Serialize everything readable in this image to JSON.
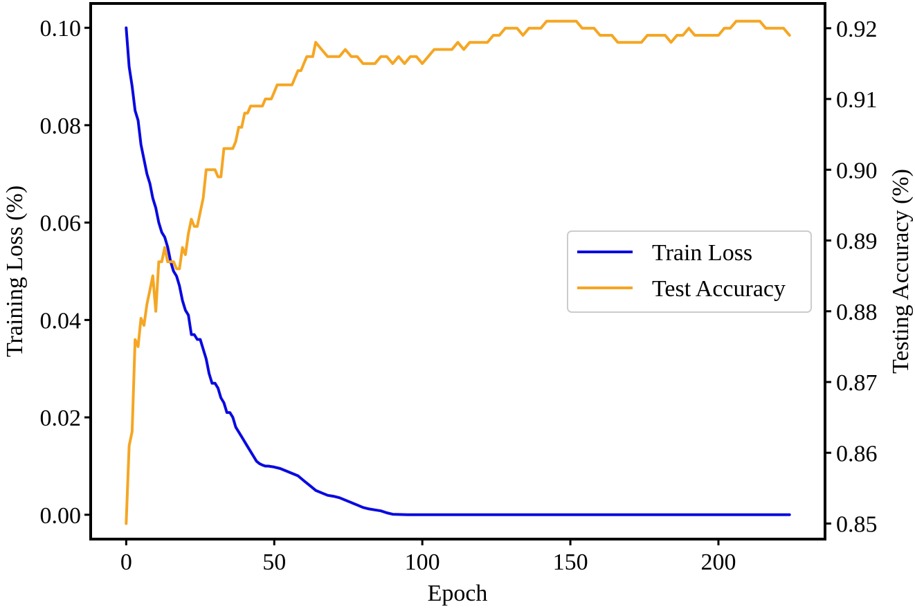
{
  "chart_data": {
    "type": "line",
    "title": "",
    "xlabel": "Epoch",
    "ylabel_left": "Training Loss (%)",
    "ylabel_right": "Testing Accuracy (%)",
    "xlim": [
      -12,
      236
    ],
    "ylim_left": [
      -0.005,
      0.105
    ],
    "ylim_right": [
      0.8478,
      0.9235
    ],
    "x_ticks": [
      0,
      50,
      100,
      150,
      200
    ],
    "x_tick_labels": [
      "0",
      "50",
      "100",
      "150",
      "200"
    ],
    "y_left_ticks": [
      0.0,
      0.02,
      0.04,
      0.06,
      0.08,
      0.1
    ],
    "y_left_tick_labels": [
      "0.00",
      "0.02",
      "0.04",
      "0.06",
      "0.08",
      "0.10"
    ],
    "y_right_ticks": [
      0.85,
      0.86,
      0.87,
      0.88,
      0.89,
      0.9,
      0.91,
      0.92
    ],
    "y_right_tick_labels": [
      "0.85",
      "0.86",
      "0.87",
      "0.88",
      "0.89",
      "0.90",
      "0.91",
      "0.92"
    ],
    "legend_position": "center-right",
    "series": [
      {
        "name": "Train Loss",
        "axis": "left",
        "color": "#0a0ae0",
        "x": [
          0,
          1,
          2,
          3,
          4,
          5,
          6,
          7,
          8,
          9,
          10,
          11,
          12,
          13,
          14,
          15,
          16,
          17,
          18,
          19,
          20,
          21,
          22,
          23,
          24,
          25,
          26,
          27,
          28,
          29,
          30,
          31,
          32,
          33,
          34,
          35,
          36,
          37,
          38,
          39,
          40,
          41,
          42,
          43,
          44,
          45,
          46,
          47,
          48,
          50,
          52,
          54,
          56,
          58,
          60,
          62,
          64,
          66,
          68,
          70,
          72,
          74,
          76,
          78,
          80,
          82,
          84,
          86,
          88,
          90,
          95,
          100,
          120,
          140,
          160,
          180,
          200,
          224
        ],
        "values": [
          0.1,
          0.092,
          0.088,
          0.083,
          0.081,
          0.076,
          0.073,
          0.07,
          0.068,
          0.065,
          0.063,
          0.06,
          0.058,
          0.057,
          0.055,
          0.052,
          0.05,
          0.049,
          0.047,
          0.044,
          0.042,
          0.041,
          0.037,
          0.037,
          0.036,
          0.036,
          0.034,
          0.032,
          0.029,
          0.027,
          0.027,
          0.026,
          0.024,
          0.023,
          0.021,
          0.021,
          0.02,
          0.018,
          0.017,
          0.016,
          0.015,
          0.014,
          0.013,
          0.012,
          0.011,
          0.0105,
          0.0102,
          0.01,
          0.01,
          0.0098,
          0.0095,
          0.009,
          0.0085,
          0.008,
          0.007,
          0.006,
          0.005,
          0.0045,
          0.004,
          0.0038,
          0.0035,
          0.003,
          0.0025,
          0.002,
          0.0015,
          0.0012,
          0.001,
          0.0008,
          0.0004,
          0.0001,
          0.0,
          0.0,
          0.0,
          0.0,
          0.0,
          0.0,
          0.0,
          0.0
        ]
      },
      {
        "name": "Test Accuracy",
        "axis": "right",
        "color": "#f5a623",
        "x": [
          0,
          1,
          2,
          3,
          4,
          5,
          6,
          7,
          8,
          9,
          10,
          11,
          12,
          13,
          14,
          15,
          16,
          17,
          18,
          19,
          20,
          21,
          22,
          23,
          24,
          25,
          26,
          27,
          28,
          29,
          30,
          31,
          32,
          33,
          34,
          35,
          36,
          37,
          38,
          39,
          40,
          41,
          42,
          43,
          44,
          45,
          46,
          47,
          48,
          49,
          50,
          51,
          52,
          53,
          54,
          55,
          56,
          57,
          58,
          59,
          60,
          61,
          62,
          63,
          64,
          66,
          68,
          70,
          72,
          74,
          76,
          78,
          80,
          82,
          84,
          86,
          88,
          90,
          92,
          94,
          96,
          98,
          100,
          102,
          104,
          106,
          108,
          110,
          112,
          114,
          116,
          118,
          120,
          122,
          124,
          126,
          128,
          130,
          132,
          134,
          136,
          138,
          140,
          142,
          144,
          146,
          148,
          150,
          152,
          154,
          156,
          158,
          160,
          162,
          164,
          166,
          168,
          170,
          172,
          174,
          176,
          178,
          180,
          182,
          184,
          186,
          188,
          190,
          192,
          194,
          196,
          198,
          200,
          202,
          204,
          206,
          208,
          210,
          212,
          214,
          216,
          218,
          220,
          222,
          224
        ],
        "values": [
          0.85,
          0.861,
          0.863,
          0.876,
          0.875,
          0.879,
          0.878,
          0.881,
          0.883,
          0.885,
          0.88,
          0.887,
          0.887,
          0.889,
          0.887,
          0.887,
          0.887,
          0.886,
          0.886,
          0.889,
          0.888,
          0.891,
          0.893,
          0.892,
          0.892,
          0.894,
          0.896,
          0.9,
          0.9,
          0.9,
          0.9,
          0.899,
          0.899,
          0.903,
          0.903,
          0.903,
          0.903,
          0.904,
          0.906,
          0.906,
          0.908,
          0.908,
          0.909,
          0.909,
          0.909,
          0.909,
          0.909,
          0.91,
          0.91,
          0.91,
          0.911,
          0.912,
          0.912,
          0.912,
          0.912,
          0.912,
          0.912,
          0.913,
          0.914,
          0.914,
          0.915,
          0.916,
          0.916,
          0.916,
          0.918,
          0.917,
          0.916,
          0.916,
          0.916,
          0.917,
          0.916,
          0.916,
          0.915,
          0.915,
          0.915,
          0.916,
          0.916,
          0.915,
          0.916,
          0.915,
          0.916,
          0.916,
          0.915,
          0.916,
          0.917,
          0.917,
          0.917,
          0.917,
          0.918,
          0.917,
          0.918,
          0.918,
          0.918,
          0.918,
          0.919,
          0.919,
          0.92,
          0.92,
          0.92,
          0.919,
          0.92,
          0.92,
          0.92,
          0.921,
          0.921,
          0.921,
          0.921,
          0.921,
          0.921,
          0.92,
          0.92,
          0.92,
          0.919,
          0.919,
          0.919,
          0.918,
          0.918,
          0.918,
          0.918,
          0.918,
          0.919,
          0.919,
          0.919,
          0.919,
          0.918,
          0.919,
          0.919,
          0.92,
          0.919,
          0.919,
          0.919,
          0.919,
          0.919,
          0.92,
          0.92,
          0.921,
          0.921,
          0.921,
          0.921,
          0.921,
          0.92,
          0.92,
          0.92,
          0.92,
          0.919
        ]
      }
    ]
  }
}
